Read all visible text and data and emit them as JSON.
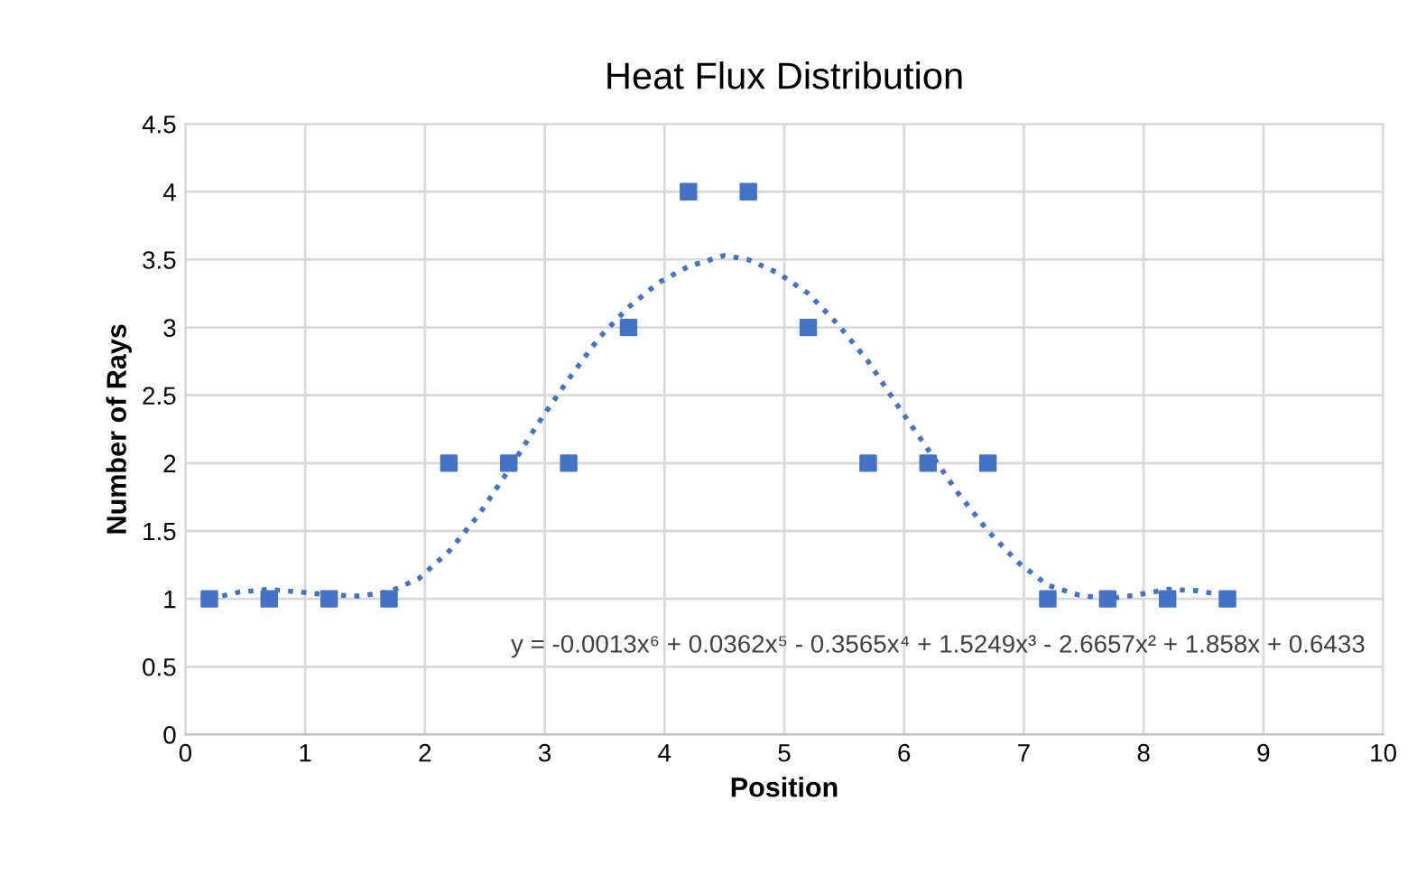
{
  "chart_data": {
    "type": "scatter",
    "title": "Heat Flux Distribution",
    "xlabel": "Position",
    "ylabel": "Number of Rays",
    "xlim": [
      0,
      10
    ],
    "xticks": [
      0,
      1,
      2,
      3,
      4,
      5,
      6,
      7,
      8,
      9,
      10
    ],
    "ylim": [
      0,
      4.5
    ],
    "yticks": [
      0,
      0.5,
      1,
      1.5,
      2,
      2.5,
      3,
      3.5,
      4,
      4.5
    ],
    "grid": true,
    "series": [
      {
        "color": "#4472c4",
        "marker": "square",
        "x": [
          0.2,
          0.7,
          1.2,
          1.7,
          2.2,
          2.7,
          3.2,
          3.7,
          4.2,
          4.7,
          5.2,
          5.7,
          6.2,
          6.7,
          7.2,
          7.7,
          8.2,
          8.7
        ],
        "values": [
          1,
          1,
          1,
          1,
          2,
          2,
          2,
          3,
          4,
          4,
          3,
          2,
          2,
          2,
          1,
          1,
          1,
          1
        ]
      },
      {
        "type": "line",
        "color": "#4472c4",
        "line_style": "dotted",
        "marker": "none",
        "x": [
          0.2,
          0.45,
          0.7,
          0.95,
          1.2,
          1.45,
          1.7,
          1.95,
          2.2,
          2.45,
          2.7,
          2.95,
          3.2,
          3.45,
          3.7,
          3.95,
          4.2,
          4.5,
          4.7,
          4.95,
          5.2,
          5.45,
          5.7,
          5.95,
          6.2,
          6.45,
          6.7,
          6.95,
          7.2,
          7.45,
          7.7,
          7.95,
          8.2,
          8.45,
          8.7
        ],
        "values": [
          1.0,
          1.05,
          1.07,
          1.05,
          1.03,
          1.02,
          1.05,
          1.15,
          1.35,
          1.62,
          1.95,
          2.3,
          2.62,
          2.92,
          3.15,
          3.33,
          3.45,
          3.53,
          3.5,
          3.4,
          3.25,
          3.02,
          2.75,
          2.42,
          2.1,
          1.78,
          1.5,
          1.27,
          1.1,
          1.03,
          1.0,
          1.03,
          1.07,
          1.06,
          1.02
        ]
      }
    ],
    "annotations": [
      "y = -0.0013x⁶ + 0.0362x⁵ - 0.3565x⁴ + 1.5249x³ - 2.6657x² + 1.858x + 0.6433"
    ]
  }
}
